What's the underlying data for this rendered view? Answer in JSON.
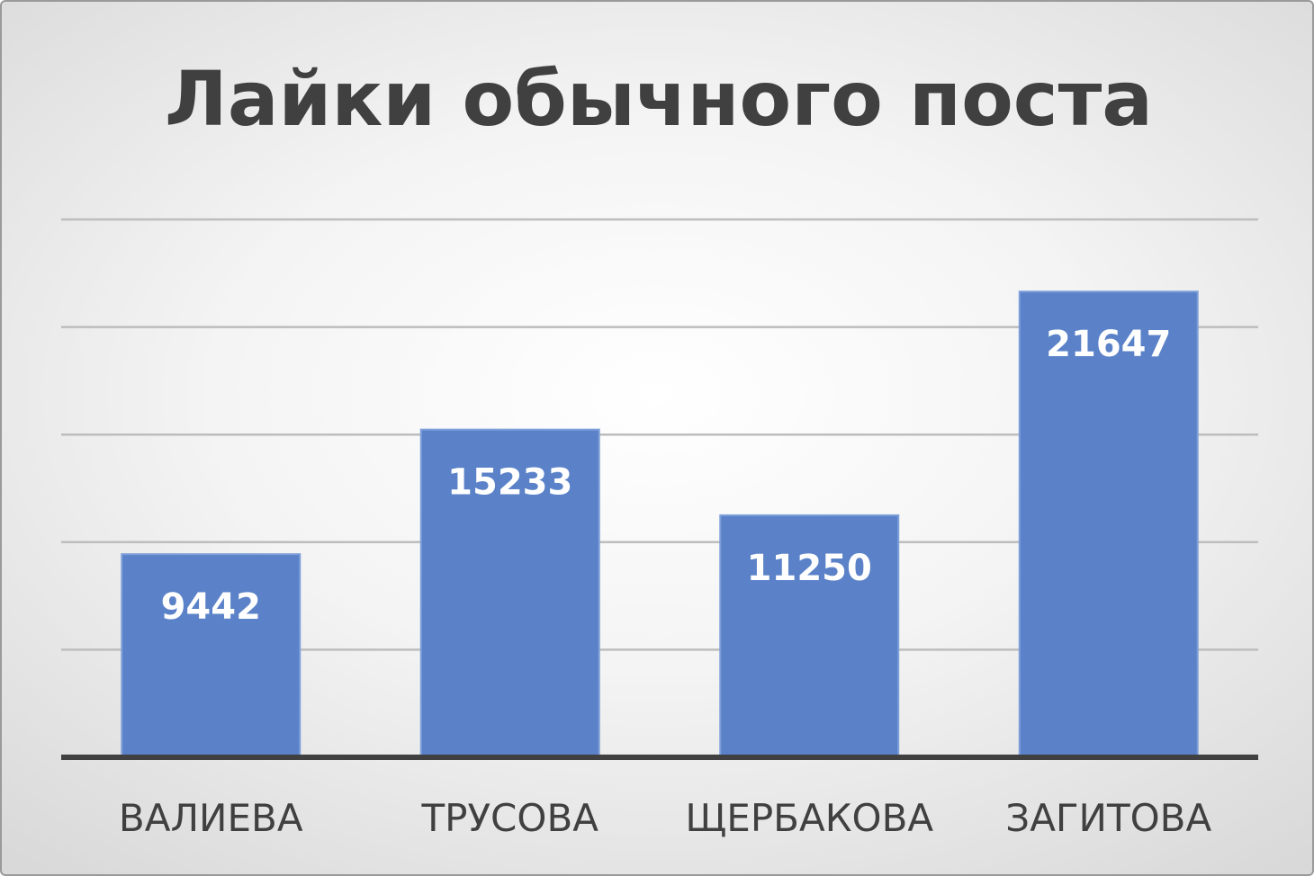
{
  "chart_data": {
    "type": "bar",
    "title": "Лайки обычного поста",
    "categories": [
      "ВАЛИЕВА",
      "ТРУСОВА",
      "ЩЕРБАКОВА",
      "ЗАГИТОВА"
    ],
    "values": [
      9442,
      15233,
      11250,
      21647
    ],
    "ylim": [
      0,
      25000
    ],
    "gridline_step": 5000,
    "grid": true,
    "legend": "none",
    "xlabel": "",
    "ylabel": "",
    "colors": {
      "bar": "#5b82c8",
      "bar_border": "#7ea0da",
      "grid": "#bdbdbd",
      "axis": "#404040",
      "title": "#404040",
      "data_label": "#ffffff",
      "category_label": "#404040"
    }
  }
}
